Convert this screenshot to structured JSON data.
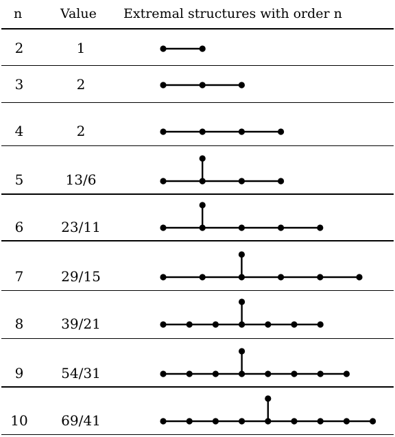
{
  "headers": {
    "n": "n",
    "value": "Value",
    "structures": "Extremal structures with order n"
  },
  "rows": [
    {
      "n": "2",
      "value": "1",
      "path": 2,
      "branch": null,
      "rule": "thin"
    },
    {
      "n": "3",
      "value": "2",
      "path": 3,
      "branch": null,
      "rule": "thin"
    },
    {
      "n": "4",
      "value": "2",
      "path": 4,
      "branch": null,
      "rule": "thin"
    },
    {
      "n": "5",
      "value": "13/6",
      "path": 4,
      "branch": 1,
      "rule": "thick"
    },
    {
      "n": "6",
      "value": "23/11",
      "path": 5,
      "branch": 1,
      "rule": "thick"
    },
    {
      "n": "7",
      "value": "29/15",
      "path": 6,
      "branch": 2,
      "rule": "thin"
    },
    {
      "n": "8",
      "value": "39/21",
      "path": 7,
      "branch": 3,
      "rule": "thin"
    },
    {
      "n": "9",
      "value": "54/31",
      "path": 8,
      "branch": 3,
      "rule": "thick"
    },
    {
      "n": "10",
      "value": "69/41",
      "path": 9,
      "branch": 4,
      "rule": "thin"
    }
  ]
}
